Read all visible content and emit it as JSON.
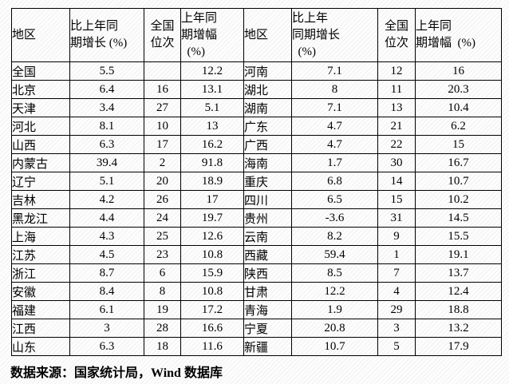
{
  "colors": {
    "border": "#000000",
    "text": "#000000",
    "background": "#fdfdfd"
  },
  "table": {
    "header_left": {
      "region": "地区",
      "growth": "比上年同\n期增长 (%)",
      "rank": "全国\n位次",
      "prev": "上年同\n期增幅\n  (%)"
    },
    "header_right": {
      "region": "地区",
      "growth": "比上年\n同期增长\n  (%)",
      "rank": "全国\n位次",
      "prev": "上年同\n期增幅  (%)"
    },
    "rows": [
      {
        "left": {
          "region": "全国",
          "growth": "5.5",
          "rank": "",
          "prev": "12.2"
        },
        "right": {
          "region": "河南",
          "growth": "7.1",
          "rank": "12",
          "prev": "16"
        }
      },
      {
        "left": {
          "region": "北京",
          "growth": "6.4",
          "rank": "16",
          "prev": "13.1"
        },
        "right": {
          "region": "湖北",
          "growth": "8",
          "rank": "11",
          "prev": "20.3"
        }
      },
      {
        "left": {
          "region": "天津",
          "growth": "3.4",
          "rank": "27",
          "prev": "5.1"
        },
        "right": {
          "region": "湖南",
          "growth": "7.1",
          "rank": "13",
          "prev": "10.4"
        }
      },
      {
        "left": {
          "region": "河北",
          "growth": "8.1",
          "rank": "10",
          "prev": "13"
        },
        "right": {
          "region": "广东",
          "growth": "4.7",
          "rank": "21",
          "prev": "6.2"
        }
      },
      {
        "left": {
          "region": "山西",
          "growth": "6.3",
          "rank": "17",
          "prev": "16.2"
        },
        "right": {
          "region": "广西",
          "growth": "4.7",
          "rank": "22",
          "prev": "15"
        }
      },
      {
        "left": {
          "region": "内蒙古",
          "growth": "39.4",
          "rank": "2",
          "prev": "91.8"
        },
        "right": {
          "region": "海南",
          "growth": "1.7",
          "rank": "30",
          "prev": "16.7"
        }
      },
      {
        "left": {
          "region": "辽宁",
          "growth": "5.1",
          "rank": "20",
          "prev": "18.9"
        },
        "right": {
          "region": "重庆",
          "growth": "6.8",
          "rank": "14",
          "prev": "10.7"
        }
      },
      {
        "left": {
          "region": "吉林",
          "growth": "4.2",
          "rank": "26",
          "prev": "17"
        },
        "right": {
          "region": "四川",
          "growth": "6.5",
          "rank": "15",
          "prev": "10.2"
        }
      },
      {
        "left": {
          "region": "黑龙江",
          "growth": "4.4",
          "rank": "24",
          "prev": "19.7"
        },
        "right": {
          "region": "贵州",
          "growth": "-3.6",
          "rank": "31",
          "prev": "14.5"
        }
      },
      {
        "left": {
          "region": "上海",
          "growth": "4.3",
          "rank": "25",
          "prev": "12.6"
        },
        "right": {
          "region": "云南",
          "growth": "8.2",
          "rank": "9",
          "prev": "15.5"
        }
      },
      {
        "left": {
          "region": "江苏",
          "growth": "4.5",
          "rank": "23",
          "prev": "10.8"
        },
        "right": {
          "region": "西藏",
          "growth": "59.4",
          "rank": "1",
          "prev": "19.1"
        }
      },
      {
        "left": {
          "region": "浙江",
          "growth": "8.7",
          "rank": "6",
          "prev": "15.9"
        },
        "right": {
          "region": "陕西",
          "growth": "8.5",
          "rank": "7",
          "prev": "13.7"
        }
      },
      {
        "left": {
          "region": "安徽",
          "growth": "8.4",
          "rank": "8",
          "prev": "10.8"
        },
        "right": {
          "region": "甘肃",
          "growth": "12.2",
          "rank": "4",
          "prev": "12.4"
        }
      },
      {
        "left": {
          "region": "福建",
          "growth": "6.1",
          "rank": "19",
          "prev": "17.2"
        },
        "right": {
          "region": "青海",
          "growth": "1.9",
          "rank": "29",
          "prev": "18.8"
        }
      },
      {
        "left": {
          "region": "江西",
          "growth": "3",
          "rank": "28",
          "prev": "16.6"
        },
        "right": {
          "region": "宁夏",
          "growth": "20.8",
          "rank": "3",
          "prev": "13.2"
        }
      },
      {
        "left": {
          "region": "山东",
          "growth": "6.3",
          "rank": "18",
          "prev": "11.6"
        },
        "right": {
          "region": "新疆",
          "growth": "10.7",
          "rank": "5",
          "prev": "17.9"
        }
      }
    ]
  },
  "footer": {
    "source": "数据来源：国家统计局，Wind 数据库"
  }
}
